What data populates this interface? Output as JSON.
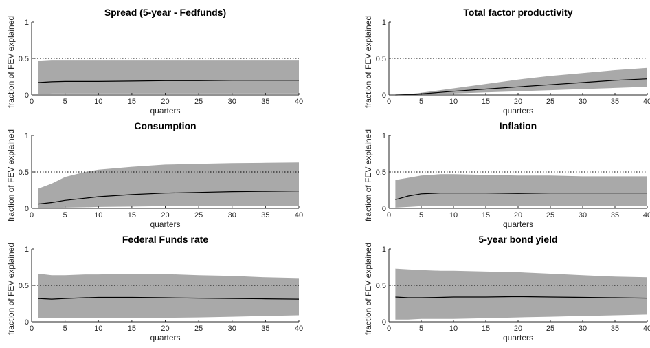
{
  "figure": {
    "ylabel": "fraction of FEV explained",
    "xlabel": "quarters",
    "colors": {
      "band": "#a9a9a9",
      "median": "#000000",
      "reference": "#000000",
      "axis": "#262626",
      "background": "#ffffff"
    }
  },
  "chart_data": [
    {
      "type": "area",
      "title": "Spread (5-year - Fedfunds)",
      "xlabel": "quarters",
      "ylabel": "fraction of FEV explained",
      "xlim": [
        0,
        40
      ],
      "ylim": [
        0,
        1
      ],
      "xticks": [
        0,
        5,
        10,
        15,
        20,
        25,
        30,
        35,
        40
      ],
      "yticks": [
        0,
        0.5,
        1
      ],
      "reference_line": 0.5,
      "x": [
        1,
        3,
        5,
        10,
        15,
        20,
        25,
        30,
        35,
        40
      ],
      "median": [
        0.17,
        0.18,
        0.185,
        0.185,
        0.19,
        0.195,
        0.195,
        0.2,
        0.2,
        0.2
      ],
      "upper": [
        0.47,
        0.48,
        0.48,
        0.48,
        0.48,
        0.48,
        0.48,
        0.48,
        0.48,
        0.48
      ],
      "lower": [
        0.01,
        0.02,
        0.02,
        0.02,
        0.02,
        0.02,
        0.02,
        0.02,
        0.02,
        0.02
      ]
    },
    {
      "type": "area",
      "title": "Total factor productivity",
      "xlabel": "quarters",
      "ylabel": "fraction of FEV explained",
      "xlim": [
        0,
        40
      ],
      "ylim": [
        0,
        1
      ],
      "xticks": [
        0,
        5,
        10,
        15,
        20,
        25,
        30,
        35,
        40
      ],
      "yticks": [
        0,
        0.5,
        1
      ],
      "reference_line": 0.5,
      "x": [
        1,
        3,
        5,
        10,
        15,
        20,
        25,
        30,
        35,
        40
      ],
      "median": [
        0.0,
        0.005,
        0.015,
        0.05,
        0.08,
        0.11,
        0.14,
        0.17,
        0.2,
        0.22
      ],
      "upper": [
        0.0,
        0.01,
        0.03,
        0.09,
        0.15,
        0.21,
        0.26,
        0.3,
        0.34,
        0.37
      ],
      "lower": [
        0.0,
        0.0,
        0.005,
        0.02,
        0.035,
        0.05,
        0.065,
        0.08,
        0.095,
        0.11
      ]
    },
    {
      "type": "area",
      "title": "Consumption",
      "xlabel": "quarters",
      "ylabel": "fraction of FEV explained",
      "xlim": [
        0,
        40
      ],
      "ylim": [
        0,
        1
      ],
      "xticks": [
        0,
        5,
        10,
        15,
        20,
        25,
        30,
        35,
        40
      ],
      "yticks": [
        0,
        0.5,
        1
      ],
      "reference_line": 0.5,
      "x": [
        1,
        3,
        5,
        8,
        10,
        15,
        20,
        25,
        30,
        35,
        40
      ],
      "median": [
        0.06,
        0.08,
        0.11,
        0.14,
        0.16,
        0.19,
        0.21,
        0.22,
        0.23,
        0.235,
        0.24
      ],
      "upper": [
        0.27,
        0.34,
        0.43,
        0.5,
        0.53,
        0.57,
        0.6,
        0.61,
        0.62,
        0.625,
        0.63
      ],
      "lower": [
        0.0,
        0.005,
        0.01,
        0.015,
        0.02,
        0.025,
        0.03,
        0.03,
        0.035,
        0.035,
        0.035
      ]
    },
    {
      "type": "area",
      "title": "Inflation",
      "xlabel": "quarters",
      "ylabel": "fraction of FEV explained",
      "xlim": [
        0,
        40
      ],
      "ylim": [
        0,
        1
      ],
      "xticks": [
        0,
        5,
        10,
        15,
        20,
        25,
        30,
        35,
        40
      ],
      "yticks": [
        0,
        0.5,
        1
      ],
      "reference_line": 0.5,
      "x": [
        1,
        3,
        5,
        8,
        10,
        15,
        20,
        25,
        30,
        35,
        40
      ],
      "median": [
        0.12,
        0.17,
        0.2,
        0.21,
        0.21,
        0.21,
        0.205,
        0.21,
        0.21,
        0.21,
        0.21
      ],
      "upper": [
        0.39,
        0.42,
        0.45,
        0.47,
        0.47,
        0.46,
        0.45,
        0.45,
        0.44,
        0.44,
        0.44
      ],
      "lower": [
        0.01,
        0.02,
        0.03,
        0.03,
        0.03,
        0.03,
        0.03,
        0.03,
        0.03,
        0.03,
        0.03
      ]
    },
    {
      "type": "area",
      "title": "Federal Funds rate",
      "xlabel": "quarters",
      "ylabel": "fraction of FEV explained",
      "xlim": [
        0,
        40
      ],
      "ylim": [
        0,
        1
      ],
      "xticks": [
        0,
        5,
        10,
        15,
        20,
        25,
        30,
        35,
        40
      ],
      "yticks": [
        0,
        0.5,
        1
      ],
      "reference_line": 0.5,
      "x": [
        1,
        3,
        5,
        8,
        10,
        15,
        20,
        25,
        30,
        35,
        40
      ],
      "median": [
        0.32,
        0.31,
        0.32,
        0.33,
        0.335,
        0.335,
        0.33,
        0.325,
        0.32,
        0.315,
        0.31
      ],
      "upper": [
        0.66,
        0.64,
        0.64,
        0.65,
        0.65,
        0.66,
        0.655,
        0.64,
        0.63,
        0.61,
        0.6
      ],
      "lower": [
        0.05,
        0.05,
        0.05,
        0.05,
        0.05,
        0.05,
        0.055,
        0.06,
        0.07,
        0.08,
        0.09
      ]
    },
    {
      "type": "area",
      "title": "5-year bond yield",
      "xlabel": "quarters",
      "ylabel": "fraction of FEV explained",
      "xlim": [
        0,
        40
      ],
      "ylim": [
        0,
        1
      ],
      "xticks": [
        0,
        5,
        10,
        15,
        20,
        25,
        30,
        35,
        40
      ],
      "yticks": [
        0,
        0.5,
        1
      ],
      "reference_line": 0.5,
      "x": [
        1,
        3,
        5,
        8,
        10,
        15,
        20,
        25,
        30,
        35,
        40
      ],
      "median": [
        0.34,
        0.33,
        0.33,
        0.335,
        0.34,
        0.34,
        0.345,
        0.34,
        0.335,
        0.33,
        0.325
      ],
      "upper": [
        0.73,
        0.72,
        0.71,
        0.7,
        0.7,
        0.69,
        0.68,
        0.66,
        0.64,
        0.62,
        0.61
      ],
      "lower": [
        0.03,
        0.03,
        0.04,
        0.04,
        0.04,
        0.05,
        0.06,
        0.07,
        0.08,
        0.09,
        0.1
      ]
    }
  ]
}
